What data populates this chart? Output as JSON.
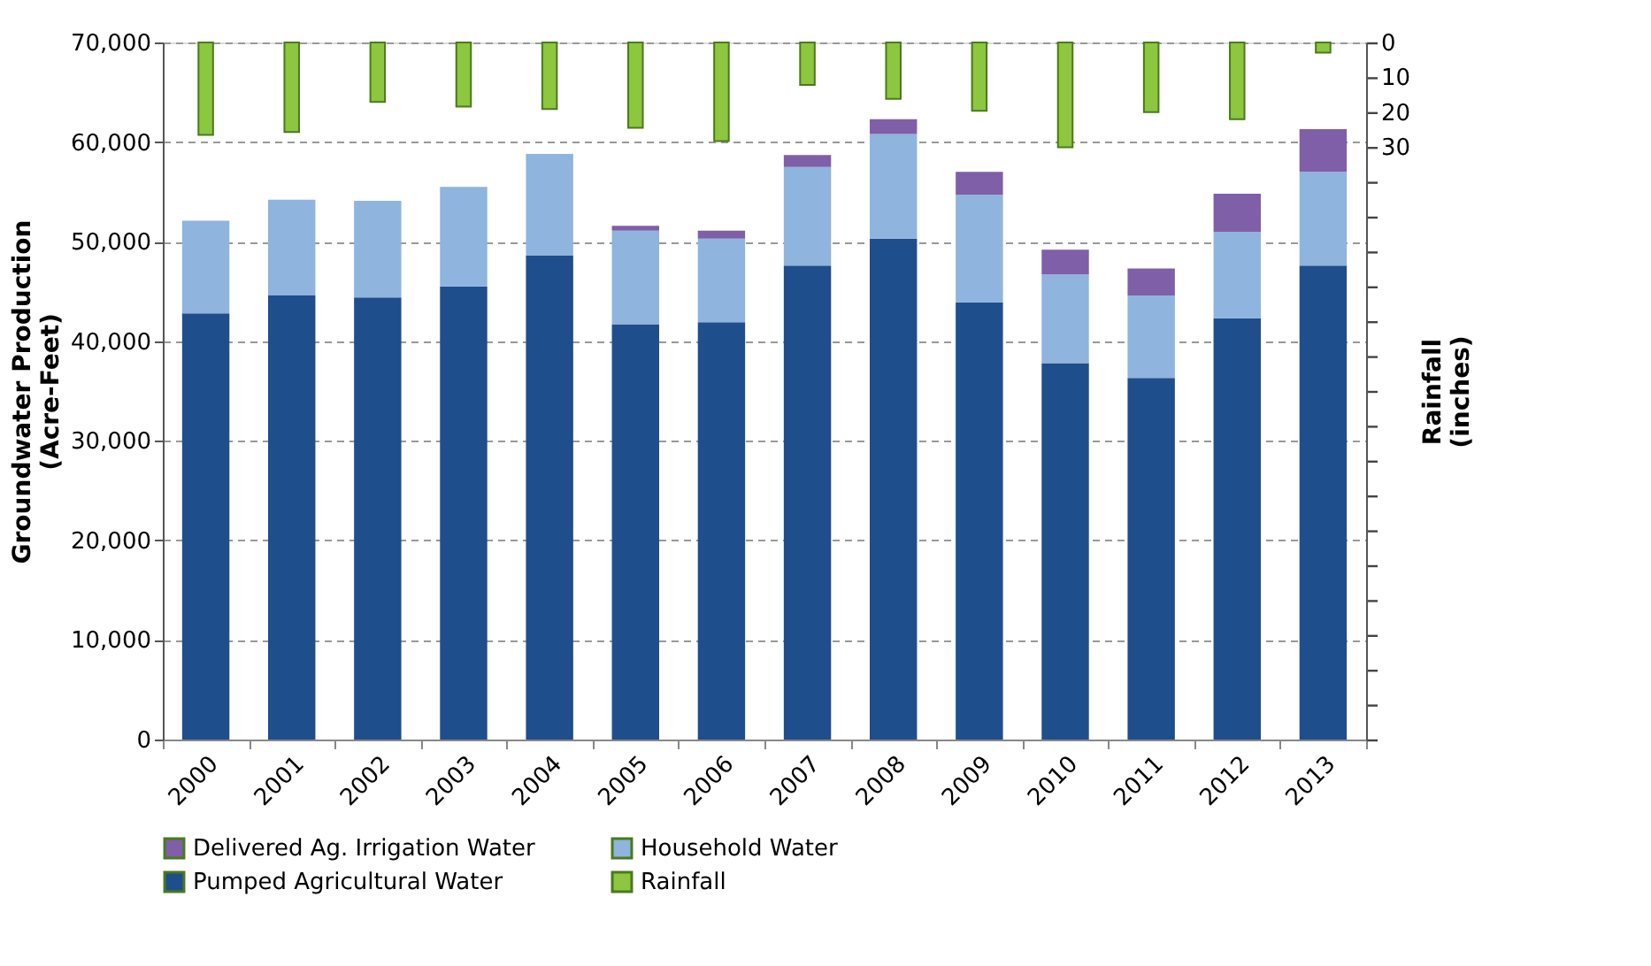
{
  "chart_data": {
    "type": "bar",
    "stacked": true,
    "xlabel": null,
    "ylabel": "Groundwater Production\n(Acre-Feet)",
    "y2label": "Rainfall\n(inches)",
    "categories": [
      "2000",
      "2001",
      "2002",
      "2003",
      "2004",
      "2005",
      "2006",
      "2007",
      "2008",
      "2009",
      "2010",
      "2011",
      "2012",
      "2013"
    ],
    "series": [
      {
        "name": "Pumped Agricultural Water",
        "color": "#1f4e8c",
        "values": [
          42800,
          44600,
          44400,
          45500,
          48600,
          41700,
          41900,
          47600,
          50300,
          43900,
          37800,
          36300,
          42300,
          47600
        ]
      },
      {
        "name": "Household Water",
        "color": "#8fb4de",
        "values": [
          9300,
          9600,
          9700,
          10000,
          10200,
          9400,
          8400,
          9900,
          10500,
          10800,
          8900,
          8300,
          8700,
          9400
        ]
      },
      {
        "name": "Delivered Ag. Irrigation Water",
        "color": "#7f5fa8",
        "values": [
          0,
          0,
          0,
          0,
          0,
          500,
          800,
          1200,
          1500,
          2300,
          2500,
          2700,
          3800,
          4300
        ]
      },
      {
        "name": "Rainfall",
        "color": "#8dc63f",
        "axis": "y2",
        "values": [
          26.5,
          25.7,
          17.1,
          18.4,
          19.1,
          24.5,
          28.3,
          12.2,
          16.2,
          19.6,
          30.1,
          20,
          22,
          2.9
        ]
      }
    ],
    "ylim": [
      0,
      70000
    ],
    "yticks": [
      0,
      {
        "value": 10000,
        "label": "10,000"
      },
      {
        "value": 20000,
        "label": "20,000"
      },
      {
        "value": 30000,
        "label": "30,000"
      },
      {
        "value": 40000,
        "label": "40,000"
      },
      {
        "value": 50000,
        "label": "50,000"
      },
      {
        "value": 60000,
        "label": "60,000"
      },
      {
        "value": 70000,
        "label": "70,000"
      }
    ],
    "y2lim": [
      200,
      0
    ],
    "y2ticks": [
      0,
      10,
      20,
      30,
      {
        "value": 40,
        "label": null
      },
      {
        "value": 50,
        "label": null
      },
      {
        "value": 60,
        "label": null
      },
      {
        "value": 70,
        "label": null
      },
      {
        "value": 80,
        "label": null
      },
      {
        "value": 90,
        "label": null
      },
      {
        "value": 100,
        "label": null
      },
      {
        "value": 110,
        "label": null
      },
      {
        "value": 120,
        "label": null
      },
      {
        "value": 130,
        "label": null
      },
      {
        "value": 140,
        "label": null
      },
      {
        "value": 150,
        "label": null
      },
      {
        "value": 160,
        "label": null
      },
      {
        "value": 170,
        "label": null
      },
      {
        "value": 180,
        "label": null
      },
      {
        "value": 190,
        "label": null
      },
      {
        "value": 200,
        "label": null
      }
    ],
    "grid": "y",
    "legend": "bottom"
  }
}
